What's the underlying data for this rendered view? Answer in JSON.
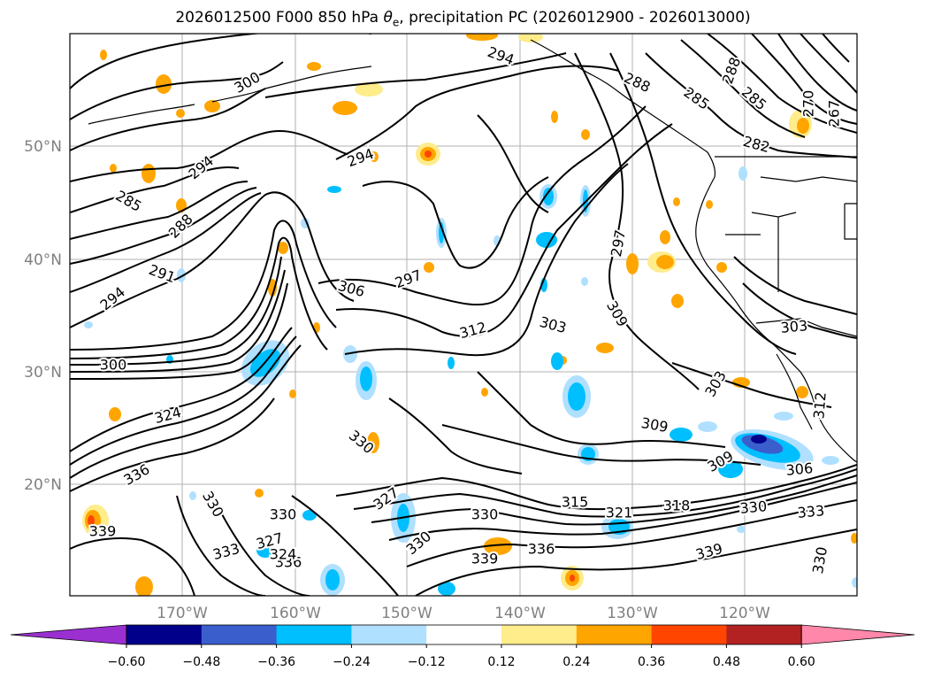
{
  "title": {
    "prefix": "2026012500 F000 850 hPa ",
    "theta_symbol": "θ",
    "theta_sub": "e",
    "suffix": ", precipitation PC (2026012900 - 2026013000)"
  },
  "axes": {
    "lon_ticks": [
      "170°W",
      "160°W",
      "150°W",
      "140°W",
      "130°W",
      "120°W"
    ],
    "lat_ticks": [
      "50°N",
      "40°N",
      "30°N",
      "20°N"
    ]
  },
  "colorbar": {
    "colors": [
      "#9b30d0",
      "#00008b",
      "#3a5fcd",
      "#00bfff",
      "#b0e0ff",
      "#ffffff",
      "#ffec8b",
      "#ffa500",
      "#ff4500",
      "#b22222",
      "#ff88aa"
    ],
    "ticks": [
      "−0.60",
      "−0.48",
      "−0.36",
      "−0.24",
      "−0.12",
      "0.12",
      "0.24",
      "0.36",
      "0.48",
      "0.60"
    ]
  },
  "contour_labels": [
    {
      "text": "294"
    },
    {
      "text": "300"
    },
    {
      "text": "288"
    },
    {
      "text": "285"
    },
    {
      "text": "288"
    },
    {
      "text": "270"
    },
    {
      "text": "267"
    },
    {
      "text": "285"
    },
    {
      "text": "282"
    },
    {
      "text": "294"
    },
    {
      "text": "294"
    },
    {
      "text": "285"
    },
    {
      "text": "288"
    },
    {
      "text": "291"
    },
    {
      "text": "294"
    },
    {
      "text": "297"
    },
    {
      "text": "306"
    },
    {
      "text": "297"
    },
    {
      "text": "309"
    },
    {
      "text": "303"
    },
    {
      "text": "312"
    },
    {
      "text": "300"
    },
    {
      "text": "324"
    },
    {
      "text": "303"
    },
    {
      "text": "303"
    },
    {
      "text": "312"
    },
    {
      "text": "309"
    },
    {
      "text": "336"
    },
    {
      "text": "309"
    },
    {
      "text": "306"
    },
    {
      "text": "330"
    },
    {
      "text": "339"
    },
    {
      "text": "330"
    },
    {
      "text": "315"
    },
    {
      "text": "321"
    },
    {
      "text": "318"
    },
    {
      "text": "330"
    },
    {
      "text": "333"
    },
    {
      "text": "333"
    },
    {
      "text": "327"
    },
    {
      "text": "336"
    },
    {
      "text": "330"
    },
    {
      "text": "330"
    },
    {
      "text": "339"
    },
    {
      "text": "336"
    },
    {
      "text": "339"
    },
    {
      "text": "330"
    },
    {
      "text": "327"
    },
    {
      "text": "324"
    },
    {
      "text": "330"
    }
  ]
}
